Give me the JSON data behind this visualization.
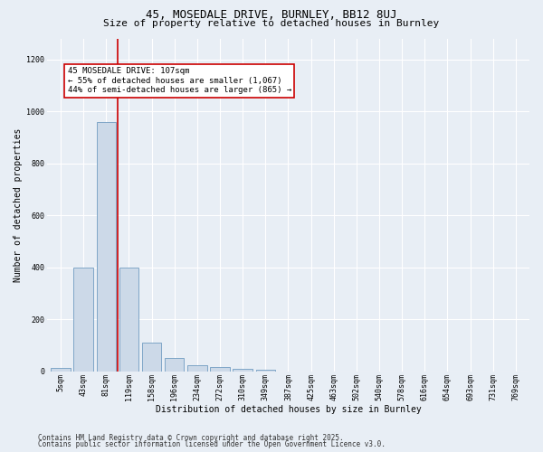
{
  "title1": "45, MOSEDALE DRIVE, BURNLEY, BB12 8UJ",
  "title2": "Size of property relative to detached houses in Burnley",
  "xlabel": "Distribution of detached houses by size in Burnley",
  "ylabel": "Number of detached properties",
  "categories": [
    "5sqm",
    "43sqm",
    "81sqm",
    "119sqm",
    "158sqm",
    "196sqm",
    "234sqm",
    "272sqm",
    "310sqm",
    "349sqm",
    "387sqm",
    "425sqm",
    "463sqm",
    "502sqm",
    "540sqm",
    "578sqm",
    "616sqm",
    "654sqm",
    "693sqm",
    "731sqm",
    "769sqm"
  ],
  "values": [
    12,
    400,
    960,
    400,
    110,
    50,
    22,
    15,
    10,
    5,
    0,
    0,
    0,
    0,
    0,
    0,
    0,
    0,
    0,
    0,
    0
  ],
  "bar_color": "#ccd9e8",
  "bar_edge_color": "#5b8db8",
  "red_line_x": 2.5,
  "annotation_text": "45 MOSEDALE DRIVE: 107sqm\n← 55% of detached houses are smaller (1,067)\n44% of semi-detached houses are larger (865) →",
  "annotation_box_color": "#ffffff",
  "annotation_box_edge_color": "#cc0000",
  "ylim": [
    0,
    1280
  ],
  "yticks": [
    0,
    200,
    400,
    600,
    800,
    1000,
    1200
  ],
  "footer1": "Contains HM Land Registry data © Crown copyright and database right 2025.",
  "footer2": "Contains public sector information licensed under the Open Government Licence v3.0.",
  "bg_color": "#e8eef5",
  "plot_bg_color": "#e8eef5",
  "grid_color": "#ffffff",
  "title1_fontsize": 9,
  "title2_fontsize": 8,
  "tick_fontsize": 6,
  "ylabel_fontsize": 7,
  "xlabel_fontsize": 7,
  "annotation_fontsize": 6.5,
  "footer_fontsize": 5.5
}
